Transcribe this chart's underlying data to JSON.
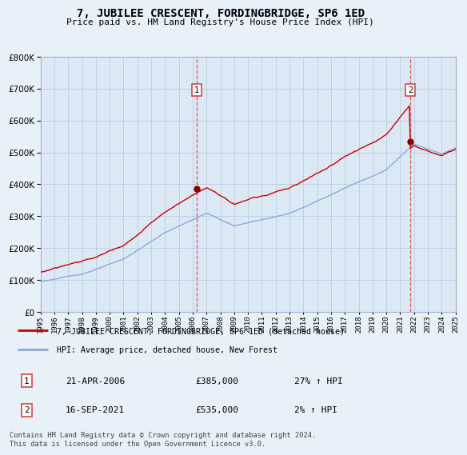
{
  "title": "7, JUBILEE CRESCENT, FORDINGBRIDGE, SP6 1ED",
  "subtitle": "Price paid vs. HM Land Registry's House Price Index (HPI)",
  "background_color": "#e8f0f8",
  "plot_bg_color": "#dde8f5",
  "ylim": [
    0,
    800000
  ],
  "yticks": [
    0,
    100000,
    200000,
    300000,
    400000,
    500000,
    600000,
    700000,
    800000
  ],
  "ytick_labels": [
    "£0",
    "£100K",
    "£200K",
    "£300K",
    "£400K",
    "£500K",
    "£600K",
    "£700K",
    "£800K"
  ],
  "x_start_year": 1995,
  "x_end_year": 2025,
  "transaction1_date": 2006.3,
  "transaction1_price": 385000,
  "transaction1_label_display": "21-APR-2006",
  "transaction1_price_display": "£385,000",
  "transaction1_hpi_note": "27% ↑ HPI",
  "transaction2_date": 2021.72,
  "transaction2_price": 535000,
  "transaction2_label_display": "16-SEP-2021",
  "transaction2_price_display": "£535,000",
  "transaction2_hpi_note": "2% ↑ HPI",
  "legend_line1": "7, JUBILEE CRESCENT, FORDINGBRIDGE, SP6 1ED (detached house)",
  "legend_line2": "HPI: Average price, detached house, New Forest",
  "footer": "Contains HM Land Registry data © Crown copyright and database right 2024.\nThis data is licensed under the Open Government Licence v3.0.",
  "line_color_red": "#cc0000",
  "line_color_blue": "#88aadd",
  "dot_color": "#880000",
  "grid_color": "#b0c4d8",
  "vline_color": "#dd4444"
}
